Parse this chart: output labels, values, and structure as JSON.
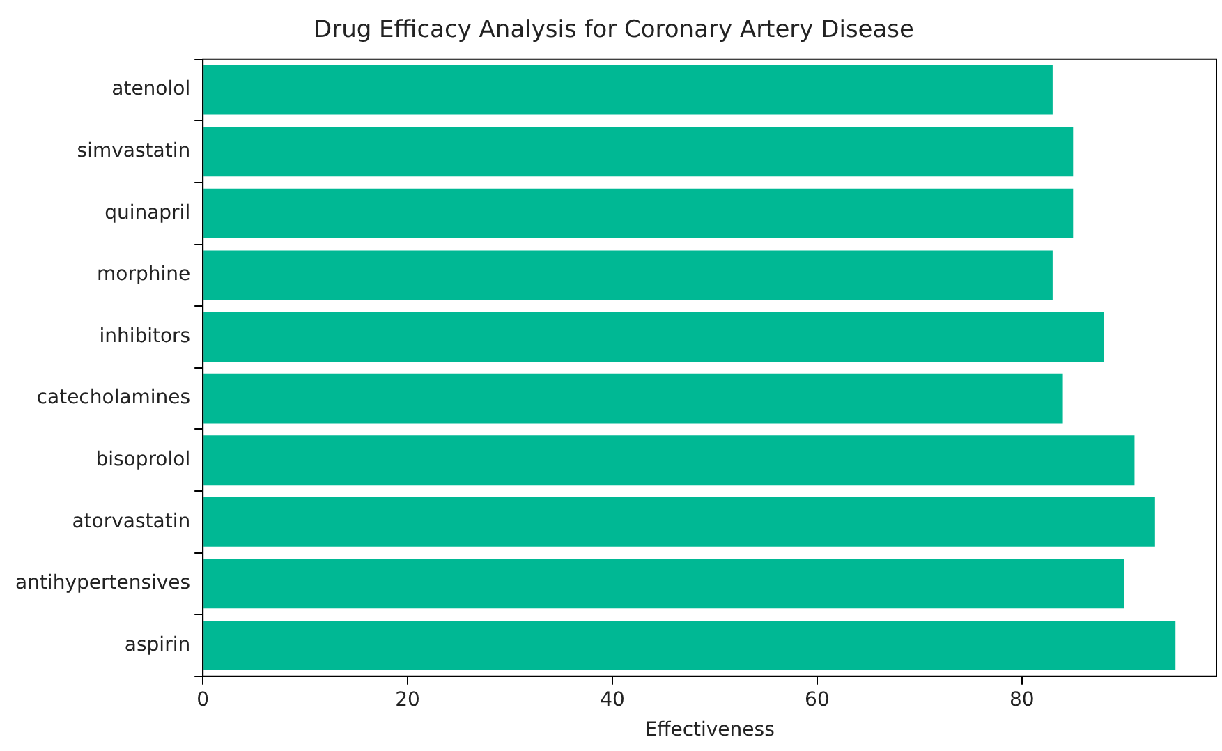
{
  "chart_data": {
    "type": "bar",
    "orientation": "horizontal",
    "title": "Drug Efficacy Analysis for Coronary Artery Disease",
    "xlabel": "Effectiveness",
    "categories": [
      "atenolol",
      "simvastatin",
      "quinapril",
      "morphine",
      "inhibitors",
      "catecholamines",
      "bisoprolol",
      "atorvastatin",
      "antihypertensives",
      "aspirin"
    ],
    "values": [
      83,
      85,
      85,
      83,
      88,
      84,
      91,
      93,
      90,
      95
    ],
    "color": "#00b894",
    "xlim": [
      0,
      99
    ],
    "xticks": [
      0,
      20,
      40,
      60,
      80
    ],
    "grid": false,
    "legend": false
  }
}
